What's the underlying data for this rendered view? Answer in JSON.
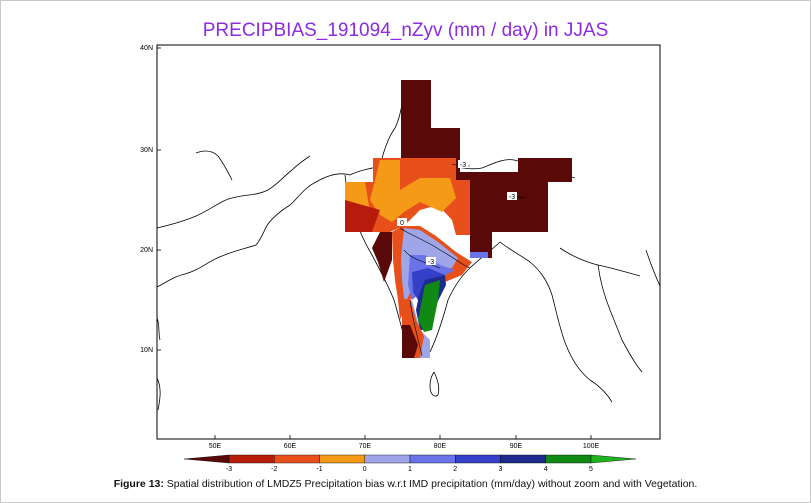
{
  "title": "PRECIPBIAS_191094_nZyv (mm / day) in JJAS",
  "lat_ticks": [
    "40N",
    "30N",
    "20N",
    "10N"
  ],
  "lon_ticks": [
    "50E",
    "60E",
    "70E",
    "80E",
    "90E",
    "100E"
  ],
  "legend": {
    "labels": [
      "-3",
      "-2",
      "-1",
      "0",
      "1",
      "2",
      "3",
      "4",
      "5"
    ],
    "colors": [
      "#5a0909",
      "#b71b0c",
      "#e8501b",
      "#f59a16",
      "#9fa6e8",
      "#6a74e8",
      "#3440c7",
      "#1f2a8e",
      "#118a14",
      "#1fb41f"
    ]
  },
  "contour_labels": [
    "-3",
    "0",
    "-3",
    "-3"
  ],
  "caption": {
    "label": "Figure 13:",
    "text": " Spatial distribution of LMDZ5 Precipitation bias w.r.t IMD precipitation (mm/day) without zoom and with Vegetation."
  }
}
